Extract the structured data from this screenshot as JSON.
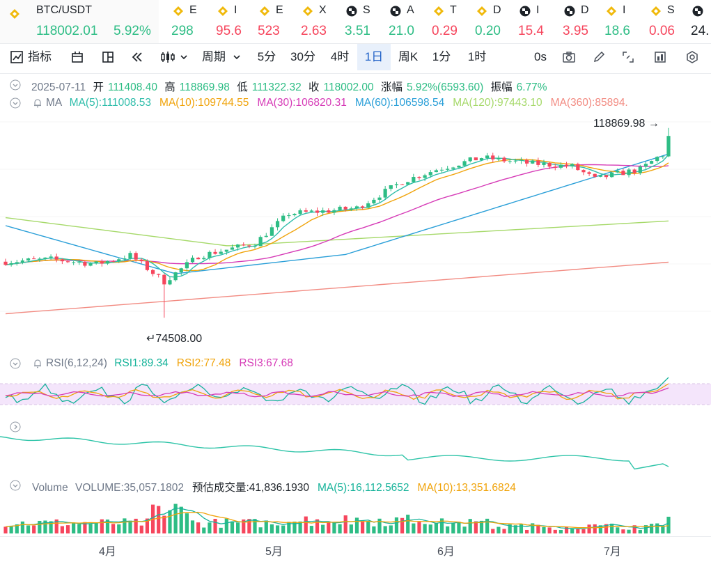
{
  "ticker": {
    "pair": "BTC/USDT",
    "price": "118002.01",
    "change": "5.92%",
    "items": [
      {
        "name": "E",
        "value": "298",
        "dir": "up",
        "icon": "binance-icon"
      },
      {
        "name": "I",
        "value": "95.6",
        "dir": "dn",
        "icon": "binance-icon"
      },
      {
        "name": "E",
        "value": "523",
        "dir": "dn",
        "icon": "binance-icon"
      },
      {
        "name": "X",
        "value": "2.63",
        "dir": "dn",
        "icon": "binance-icon"
      },
      {
        "name": "S",
        "value": "3.51",
        "dir": "up",
        "icon": "checker-icon"
      },
      {
        "name": "A",
        "value": "21.0",
        "dir": "up",
        "icon": "checker-icon"
      },
      {
        "name": "T",
        "value": "0.29",
        "dir": "dn",
        "icon": "binance-icon"
      },
      {
        "name": "D",
        "value": "0.20",
        "dir": "up",
        "icon": "binance-icon"
      },
      {
        "name": "I",
        "value": "15.4",
        "dir": "dn",
        "icon": "checker-icon"
      },
      {
        "name": "D",
        "value": "3.95",
        "dir": "dn",
        "icon": "checker-icon"
      },
      {
        "name": "I",
        "value": "18.6",
        "dir": "up",
        "icon": "binance-icon"
      },
      {
        "name": "S",
        "value": "0.06",
        "dir": "dn",
        "icon": "binance-icon"
      },
      {
        "name": "",
        "value": "24.",
        "dir": "neutral",
        "icon": "checker-icon"
      }
    ]
  },
  "toolbar": {
    "indicators": "指标",
    "period": "周期",
    "intervals": [
      "5分",
      "30分",
      "4时",
      "1日",
      "周K",
      "1分",
      "1时"
    ],
    "active_interval": "1日",
    "countdown": "0s"
  },
  "ohlc": {
    "date": "2025-07-11",
    "open_label": "开",
    "open": "111408.40",
    "high_label": "高",
    "high": "118869.98",
    "low_label": "低",
    "low": "111322.32",
    "close_label": "收",
    "close": "118002.00",
    "change_label": "涨幅",
    "change": "5.92%(6593.60)",
    "amp_label": "振幅",
    "amp": "6.77%"
  },
  "ma": {
    "label": "MA",
    "items": [
      {
        "text": "MA(5):111008.53",
        "color": "#2ebdaa"
      },
      {
        "text": "MA(10):109744.55",
        "color": "#f0a30a"
      },
      {
        "text": "MA(30):106820.31",
        "color": "#d63bb7"
      },
      {
        "text": "MA(60):106598.54",
        "color": "#2a9fd8"
      },
      {
        "text": "MA(120):97443.10",
        "color": "#a6d96a"
      },
      {
        "text": "MA(360):85894.",
        "color": "#f28b82"
      }
    ]
  },
  "rsi": {
    "label": "RSI(6,12,24)",
    "items": [
      {
        "text": "RSI1:89.34",
        "color": "#16b39a"
      },
      {
        "text": "RSI2:77.48",
        "color": "#f0a30a"
      },
      {
        "text": "RSI3:67.68",
        "color": "#d63bb7"
      }
    ]
  },
  "volume": {
    "label": "Volume",
    "items": [
      {
        "text": "VOLUME:35,057.1802",
        "color": "#707a8a"
      },
      {
        "text": "预估成交量:41,836.1930",
        "color": "#1e2329"
      },
      {
        "text": "MA(5):16,112.5652",
        "color": "#16b39a"
      },
      {
        "text": "MA(10):13,351.6824",
        "color": "#f0a30a"
      }
    ]
  },
  "chart_data": {
    "type": "candlestick",
    "high_marker": "118869.98",
    "low_marker": "74508.00",
    "x_ticks": [
      "4月",
      "5月",
      "6月",
      "7月"
    ],
    "colors": {
      "up": "#2ebd85",
      "down": "#f6465d"
    }
  }
}
